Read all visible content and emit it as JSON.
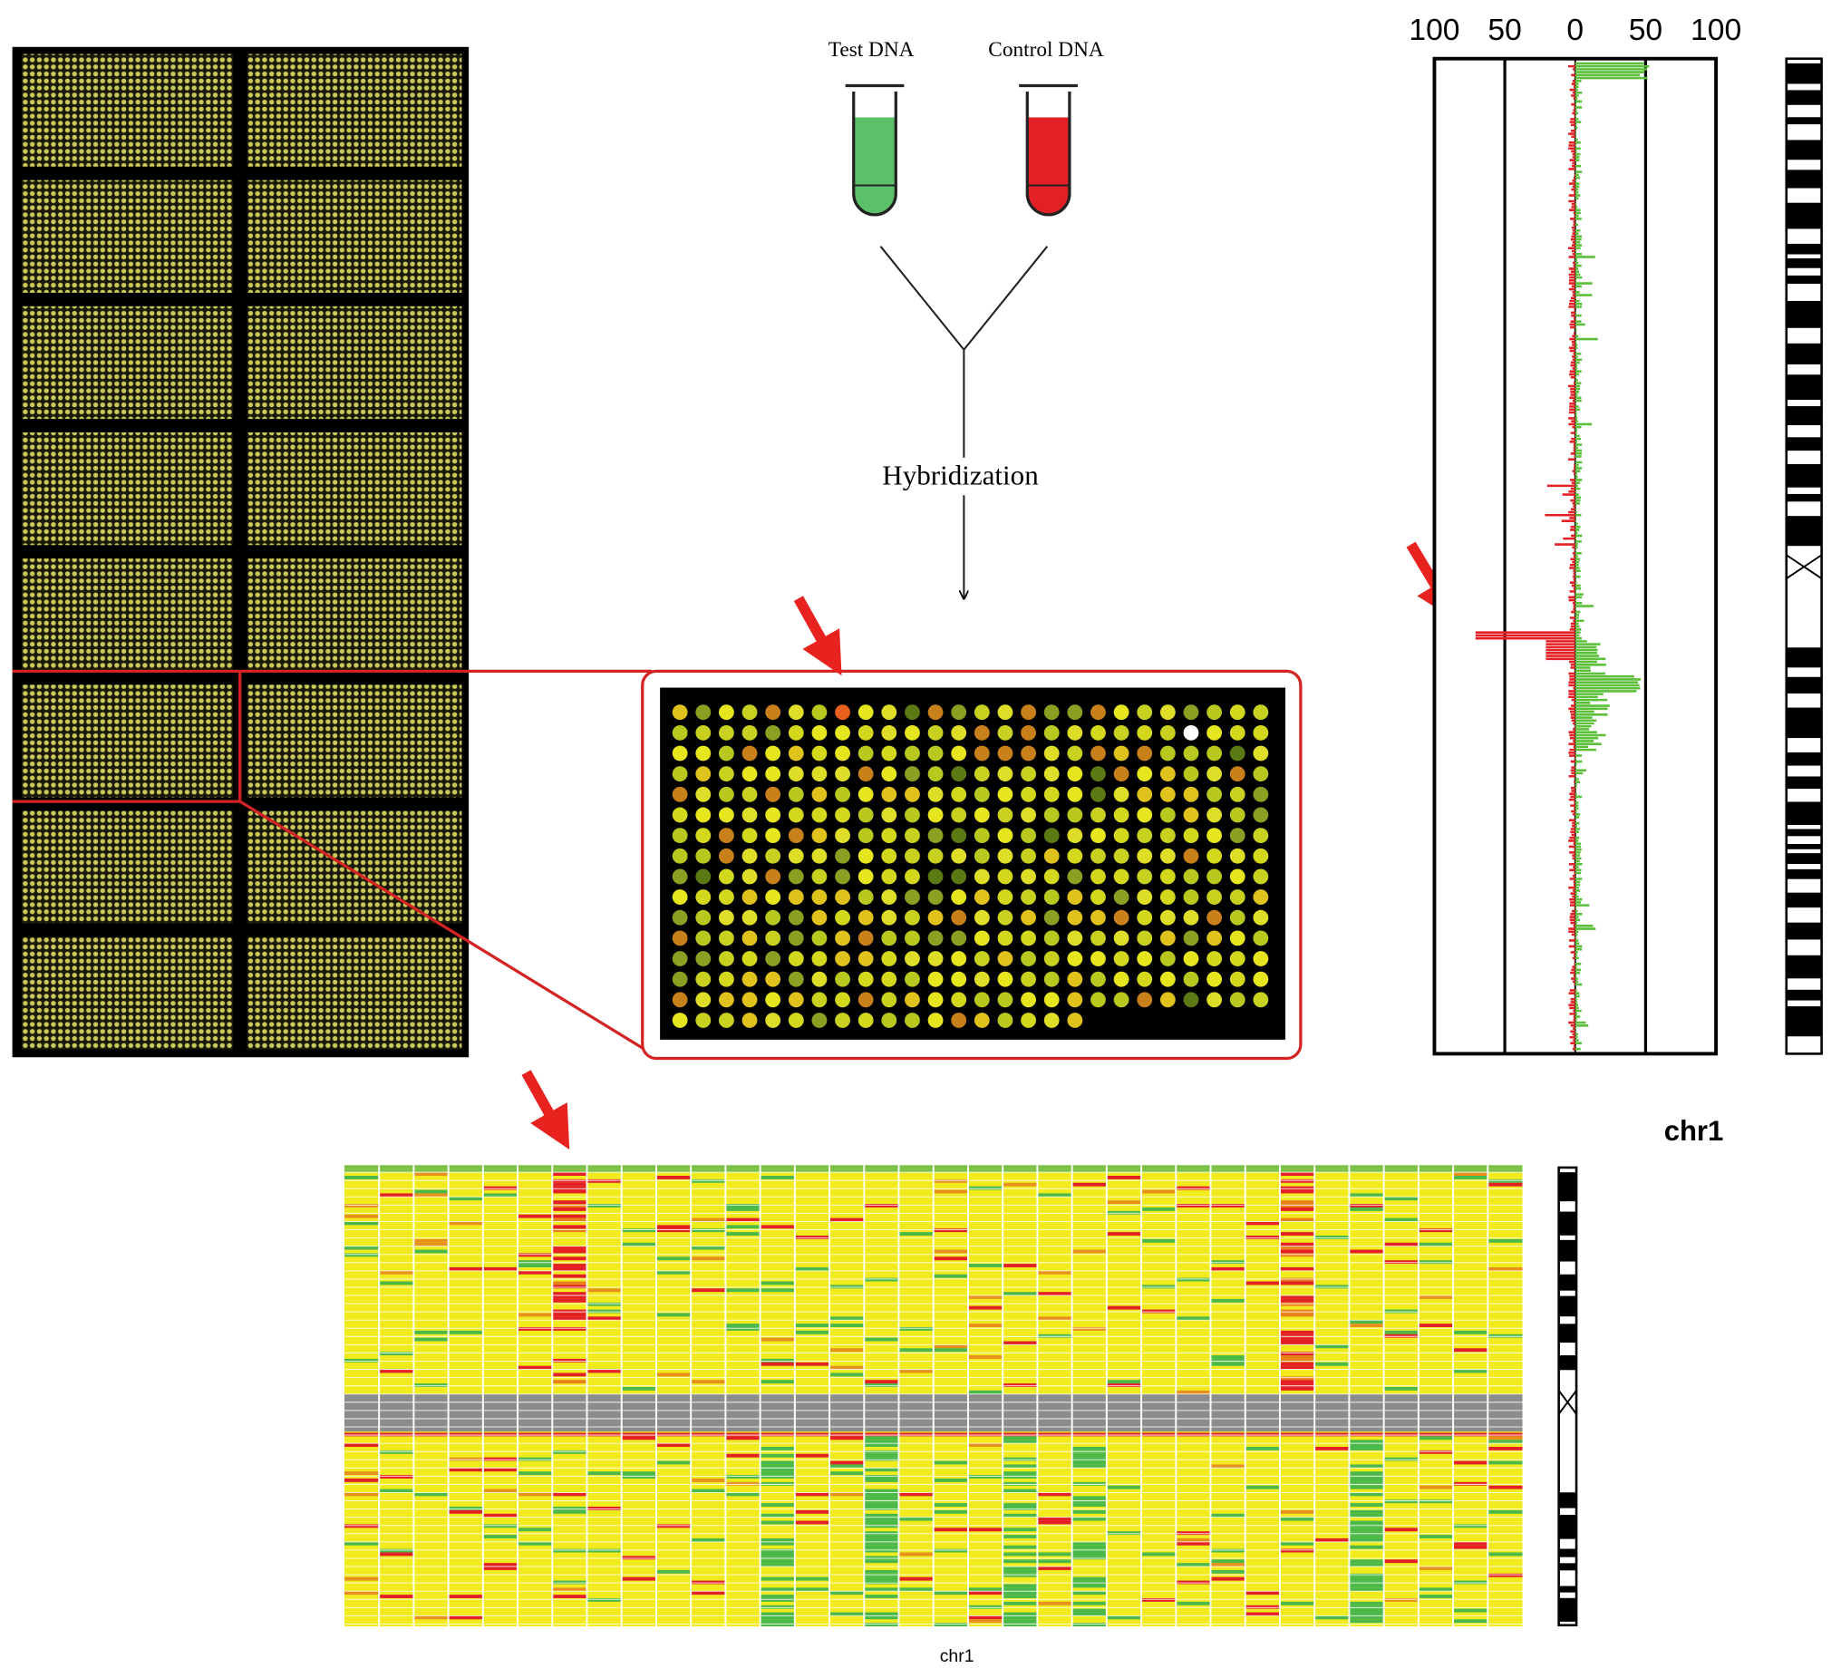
{
  "flow": {
    "test_label": "Test DNA",
    "control_label": "Control DNA",
    "step_label": "Hybridization"
  },
  "profile": {
    "ticks": [
      100,
      50,
      0,
      50,
      100
    ],
    "chromosome_label": "chr1"
  },
  "heatmap": {
    "chromosome_label": "chr1"
  }
}
